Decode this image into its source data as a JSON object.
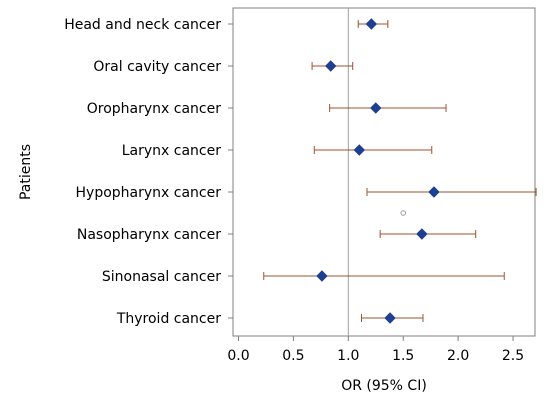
{
  "chart_data": {
    "type": "forest",
    "xlabel": "OR (95% CI)",
    "ylabel": "Patients",
    "xlim": [
      -0.05,
      2.7
    ],
    "xticks": [
      0.0,
      0.5,
      1.0,
      1.5,
      2.0,
      2.5
    ],
    "xtick_labels": [
      "0.0",
      "0.5",
      "1.0",
      "1.5",
      "2.0",
      "2.5"
    ],
    "reference_line": 1.0,
    "grid": false,
    "categories": [
      "Head and neck cancer",
      "Oral cavity cancer",
      "Oropharynx cancer",
      "Larynx cancer",
      "Hypopharynx cancer",
      "Nasopharynx cancer",
      "Sinonasal cancer",
      "Thyroid cancer"
    ],
    "or": [
      1.21,
      0.84,
      1.25,
      1.1,
      1.78,
      1.67,
      0.76,
      1.38
    ],
    "lower": [
      1.09,
      0.67,
      0.83,
      0.69,
      1.17,
      1.29,
      0.23,
      1.12
    ],
    "upper": [
      1.36,
      1.04,
      1.89,
      1.76,
      2.71,
      2.16,
      2.42,
      1.68
    ],
    "extra_point": {
      "x": 1.5,
      "between": [
        "Hypopharynx cancer",
        "Nasopharynx cancer"
      ]
    },
    "colors": {
      "marker": "#1f3f8f",
      "ci": "#a0522d",
      "axis": "#808080",
      "reference": "#a0a0a0",
      "extra_point": "#a0a0a0"
    }
  }
}
